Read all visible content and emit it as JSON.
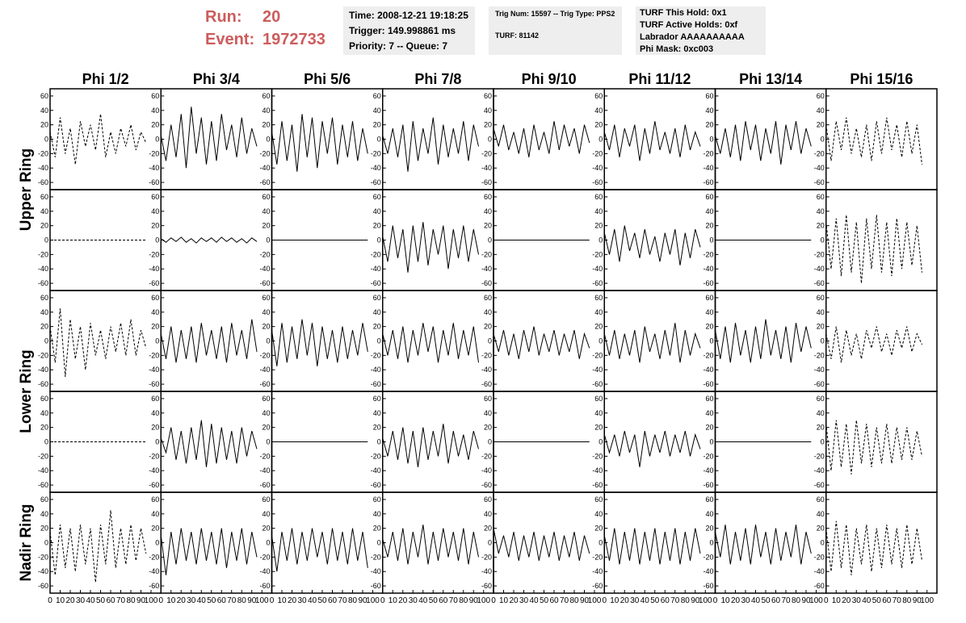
{
  "header": {
    "run_label": "Run:",
    "run": "20",
    "event_label": "Event:",
    "event": "1972733",
    "time": "Time: 2008-12-21 19:18:25",
    "trigger": "Trigger: 149.998861 ms",
    "priority": "Priority: 7 -- Queue: 7",
    "trig_num": "Trig Num: 15597 -- Trig Type: PPS2",
    "turf": "TURF: 81142",
    "turf_hold": "TURF This Hold: 0x1",
    "turf_active": "TURF Active Holds: 0xf",
    "labrador": "Labrador AAAAAAAAAA",
    "phi_mask": "Phi Mask: 0xc003"
  },
  "chart_data": {
    "type": "line",
    "color": "#000000",
    "columns": [
      "Phi 1/2",
      "Phi 3/4",
      "Phi 5/6",
      "Phi 7/8",
      "Phi 9/10",
      "Phi 11/12",
      "Phi 13/14",
      "Phi 15/16"
    ],
    "rings": [
      "Upper Ring",
      "Lower Ring",
      "Nadir Ring"
    ],
    "xlim": [
      0,
      100
    ],
    "xticks": [
      0,
      10,
      20,
      30,
      40,
      50,
      60,
      70,
      80,
      90,
      100
    ],
    "ylim": [
      -70,
      70
    ],
    "yticks": [
      60,
      40,
      20,
      0,
      -20,
      -40,
      -60
    ],
    "x": [
      0,
      5,
      10,
      15,
      20,
      25,
      30,
      35,
      40,
      45,
      50,
      55,
      60,
      65,
      70,
      75,
      80,
      85,
      90,
      95
    ],
    "panels": [
      [
        {
          "dashed": true,
          "values": [
            10,
            -25,
            30,
            -20,
            15,
            -35,
            25,
            -10,
            20,
            -15,
            35,
            -25,
            10,
            -20,
            15,
            -10,
            20,
            -15,
            10,
            -5
          ]
        },
        {
          "dashed": false,
          "values": [
            5,
            -30,
            20,
            -25,
            35,
            -40,
            45,
            -20,
            30,
            -35,
            25,
            -30,
            35,
            -15,
            20,
            -25,
            30,
            -20,
            15,
            -10
          ]
        },
        {
          "dashed": false,
          "values": [
            10,
            -35,
            25,
            -30,
            20,
            -45,
            35,
            -25,
            30,
            -40,
            25,
            -20,
            30,
            -35,
            20,
            -25,
            25,
            -30,
            15,
            -20
          ]
        },
        {
          "dashed": false,
          "values": [
            5,
            -20,
            15,
            -25,
            20,
            -45,
            25,
            -30,
            15,
            -20,
            30,
            -35,
            20,
            -25,
            15,
            -20,
            25,
            -30,
            20,
            -10
          ]
        },
        {
          "dashed": false,
          "values": [
            15,
            -10,
            20,
            -15,
            10,
            -20,
            15,
            -25,
            20,
            -15,
            10,
            -20,
            25,
            -15,
            20,
            -10,
            15,
            -20,
            20,
            -5
          ]
        },
        {
          "dashed": false,
          "values": [
            10,
            -15,
            20,
            -25,
            15,
            -10,
            20,
            -30,
            15,
            -20,
            25,
            -15,
            10,
            -20,
            15,
            -25,
            20,
            -15,
            10,
            -10
          ]
        },
        {
          "dashed": false,
          "values": [
            5,
            -20,
            15,
            -25,
            20,
            -30,
            25,
            -15,
            20,
            -30,
            15,
            -20,
            25,
            -35,
            20,
            -15,
            25,
            -20,
            15,
            -10
          ]
        },
        {
          "dashed": true,
          "values": [
            20,
            -30,
            25,
            -15,
            30,
            -20,
            15,
            -25,
            20,
            -30,
            25,
            -20,
            30,
            -15,
            20,
            -25,
            25,
            -20,
            20,
            -35
          ]
        }
      ],
      [
        {
          "dashed": true,
          "values": [
            0,
            0,
            0,
            0,
            0,
            0,
            0,
            0,
            0,
            0,
            0,
            0,
            0,
            0,
            0,
            0,
            0,
            0,
            0,
            0
          ]
        },
        {
          "dashed": false,
          "values": [
            2,
            -3,
            3,
            -2,
            4,
            -3,
            2,
            -4,
            3,
            -2,
            3,
            -3,
            4,
            -2,
            3,
            -3,
            2,
            -4,
            3,
            -2
          ]
        },
        {
          "dashed": false,
          "values": [
            0,
            0,
            0,
            0,
            0,
            0,
            0,
            0,
            0,
            0,
            0,
            0,
            0,
            0,
            0,
            0,
            0,
            0,
            0,
            0
          ]
        },
        {
          "dashed": false,
          "values": [
            5,
            -30,
            20,
            -25,
            15,
            -45,
            20,
            -30,
            25,
            -35,
            15,
            -20,
            20,
            -40,
            15,
            -25,
            20,
            -30,
            15,
            -20
          ]
        },
        {
          "dashed": false,
          "values": [
            0,
            0,
            0,
            0,
            0,
            0,
            0,
            0,
            0,
            0,
            0,
            0,
            0,
            0,
            0,
            0,
            0,
            0,
            0,
            0
          ]
        },
        {
          "dashed": false,
          "values": [
            10,
            -20,
            15,
            -30,
            20,
            -15,
            10,
            -25,
            15,
            -20,
            5,
            -30,
            10,
            -20,
            15,
            -35,
            10,
            -25,
            15,
            -10
          ]
        },
        {
          "dashed": false,
          "values": [
            0,
            0,
            0,
            0,
            0,
            0,
            0,
            0,
            0,
            0,
            0,
            0,
            0,
            0,
            0,
            0,
            0,
            0,
            0,
            0
          ]
        },
        {
          "dashed": true,
          "values": [
            25,
            -40,
            30,
            -50,
            35,
            -45,
            25,
            -60,
            30,
            -40,
            35,
            -45,
            25,
            -50,
            30,
            -40,
            25,
            -35,
            20,
            -45
          ]
        }
      ],
      [
        {
          "dashed": true,
          "values": [
            20,
            -30,
            45,
            -50,
            30,
            -25,
            20,
            -40,
            25,
            -20,
            15,
            -25,
            20,
            -15,
            25,
            -20,
            30,
            -20,
            15,
            -10
          ]
        },
        {
          "dashed": false,
          "values": [
            10,
            -25,
            20,
            -30,
            15,
            -25,
            20,
            -30,
            25,
            -20,
            15,
            -25,
            20,
            -30,
            25,
            -20,
            15,
            -25,
            30,
            -15
          ]
        },
        {
          "dashed": false,
          "values": [
            15,
            -35,
            25,
            -30,
            20,
            -25,
            30,
            -20,
            25,
            -35,
            20,
            -25,
            15,
            -30,
            20,
            -25,
            15,
            -20,
            25,
            -15
          ]
        },
        {
          "dashed": false,
          "values": [
            10,
            -20,
            15,
            -25,
            20,
            -30,
            15,
            -20,
            25,
            -15,
            20,
            -30,
            15,
            -20,
            25,
            -25,
            15,
            -20,
            20,
            -30
          ]
        },
        {
          "dashed": false,
          "values": [
            10,
            -15,
            15,
            -20,
            10,
            -25,
            15,
            -15,
            20,
            -20,
            10,
            -15,
            15,
            -20,
            10,
            -15,
            15,
            -25,
            10,
            -10
          ]
        },
        {
          "dashed": false,
          "values": [
            10,
            -20,
            15,
            -25,
            10,
            -20,
            15,
            -30,
            20,
            -15,
            10,
            -25,
            15,
            -20,
            25,
            -30,
            15,
            -20,
            10,
            -10
          ]
        },
        {
          "dashed": false,
          "values": [
            15,
            -25,
            20,
            -30,
            25,
            -20,
            15,
            -30,
            20,
            -25,
            30,
            -20,
            15,
            -25,
            20,
            -30,
            25,
            -15,
            20,
            -10
          ]
        },
        {
          "dashed": true,
          "values": [
            10,
            -25,
            20,
            -30,
            15,
            -20,
            10,
            -25,
            15,
            -10,
            20,
            -15,
            10,
            -20,
            15,
            -10,
            20,
            -15,
            10,
            -5
          ]
        }
      ],
      [
        {
          "dashed": true,
          "values": [
            0,
            0,
            0,
            0,
            0,
            0,
            0,
            0,
            0,
            0,
            0,
            0,
            0,
            0,
            0,
            0,
            0,
            0,
            0,
            0
          ]
        },
        {
          "dashed": false,
          "values": [
            5,
            -15,
            20,
            -25,
            15,
            -30,
            20,
            -25,
            30,
            -35,
            25,
            -30,
            20,
            -25,
            15,
            -30,
            20,
            -20,
            15,
            -10
          ]
        },
        {
          "dashed": false,
          "values": [
            0,
            0,
            0,
            0,
            0,
            0,
            0,
            0,
            0,
            0,
            0,
            0,
            0,
            0,
            0,
            0,
            0,
            0,
            0,
            0
          ]
        },
        {
          "dashed": false,
          "values": [
            5,
            -20,
            15,
            -25,
            20,
            -30,
            15,
            -35,
            20,
            -25,
            15,
            -20,
            25,
            -30,
            15,
            -20,
            10,
            -25,
            15,
            -10
          ]
        },
        {
          "dashed": false,
          "values": [
            0,
            0,
            0,
            0,
            0,
            0,
            0,
            0,
            0,
            0,
            0,
            0,
            0,
            0,
            0,
            0,
            0,
            0,
            0,
            0
          ]
        },
        {
          "dashed": false,
          "values": [
            10,
            -15,
            10,
            -20,
            15,
            -15,
            10,
            -35,
            15,
            -20,
            10,
            -15,
            15,
            -20,
            10,
            -15,
            15,
            -20,
            10,
            -10
          ]
        },
        {
          "dashed": false,
          "values": [
            0,
            0,
            0,
            0,
            0,
            0,
            0,
            0,
            0,
            0,
            0,
            0,
            0,
            0,
            0,
            0,
            0,
            0,
            0,
            0
          ]
        },
        {
          "dashed": true,
          "values": [
            25,
            -40,
            30,
            -35,
            25,
            -45,
            30,
            -30,
            25,
            -35,
            20,
            -30,
            25,
            -30,
            20,
            -25,
            20,
            -25,
            15,
            -20
          ]
        }
      ],
      [
        {
          "dashed": true,
          "values": [
            15,
            -45,
            25,
            -35,
            20,
            -40,
            25,
            -30,
            20,
            -55,
            25,
            -30,
            45,
            -35,
            20,
            -30,
            25,
            -25,
            20,
            -15
          ]
        },
        {
          "dashed": false,
          "values": [
            10,
            -45,
            15,
            -30,
            20,
            -25,
            15,
            -30,
            20,
            -25,
            15,
            -30,
            20,
            -35,
            15,
            -25,
            20,
            -30,
            15,
            -20
          ]
        },
        {
          "dashed": false,
          "values": [
            10,
            -40,
            15,
            -25,
            20,
            -30,
            15,
            -25,
            20,
            -20,
            15,
            -30,
            20,
            -25,
            15,
            -30,
            20,
            -25,
            15,
            -35
          ]
        },
        {
          "dashed": false,
          "values": [
            5,
            -20,
            15,
            -25,
            20,
            -30,
            15,
            -20,
            25,
            -30,
            15,
            -25,
            20,
            -20,
            15,
            -25,
            20,
            -30,
            15,
            -20
          ]
        },
        {
          "dashed": false,
          "values": [
            20,
            -15,
            10,
            -20,
            15,
            -25,
            10,
            -20,
            15,
            -25,
            10,
            -20,
            15,
            -25,
            10,
            -20,
            15,
            -25,
            10,
            -15
          ]
        },
        {
          "dashed": false,
          "values": [
            10,
            -25,
            20,
            -30,
            15,
            -25,
            20,
            -30,
            15,
            -25,
            20,
            -30,
            15,
            -25,
            20,
            -30,
            15,
            -25,
            20,
            -15
          ]
        },
        {
          "dashed": false,
          "values": [
            15,
            -20,
            25,
            -30,
            15,
            -25,
            20,
            -30,
            25,
            -20,
            15,
            -30,
            20,
            -25,
            15,
            -20,
            25,
            -30,
            15,
            -15
          ]
        },
        {
          "dashed": true,
          "values": [
            20,
            -40,
            30,
            -35,
            25,
            -45,
            20,
            -30,
            25,
            -40,
            20,
            -35,
            25,
            -30,
            20,
            -35,
            25,
            -30,
            20,
            -25
          ]
        }
      ]
    ]
  }
}
